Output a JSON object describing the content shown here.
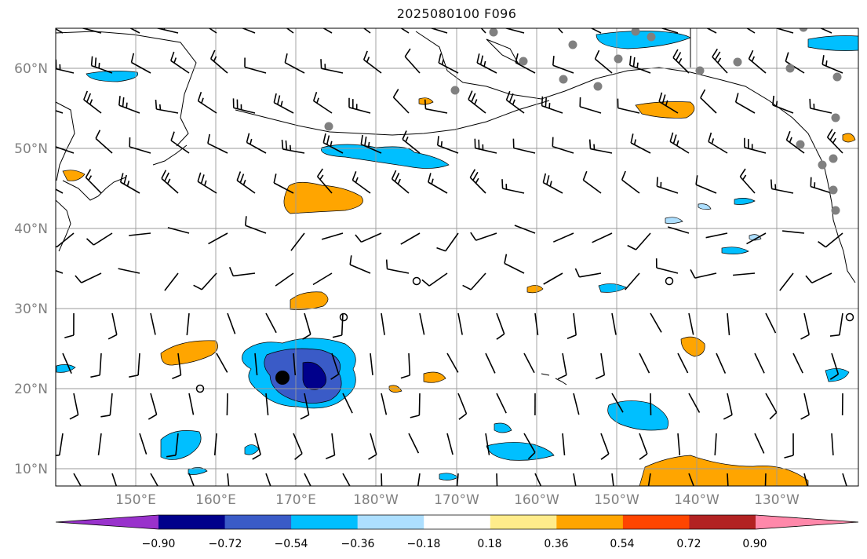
{
  "title": "2025080100 F096",
  "map": {
    "lat_labels": [
      "60°N",
      "50°N",
      "40°N",
      "30°N",
      "20°N",
      "10°N"
    ],
    "lon_labels": [
      "150°E",
      "160°E",
      "170°E",
      "180°W",
      "170°W",
      "160°W",
      "150°W",
      "140°W",
      "130°W"
    ],
    "region": "North Pacific",
    "barb_color": "#000000",
    "station_color": "#808080"
  },
  "colorbar": {
    "tick_labels": [
      "−0.90",
      "−0.72",
      "−0.54",
      "−0.36",
      "−0.18",
      "0.18",
      "0.36",
      "0.54",
      "0.72",
      "0.90"
    ],
    "colors": [
      "#9932CC",
      "#00008B",
      "#3A5BC7",
      "#00BFFF",
      "#ADDFFF",
      "#FFFFFF",
      "#FFEC8B",
      "#FFA500",
      "#FF4500",
      "#B22222",
      "#FF88AA"
    ],
    "extend": "both"
  }
}
